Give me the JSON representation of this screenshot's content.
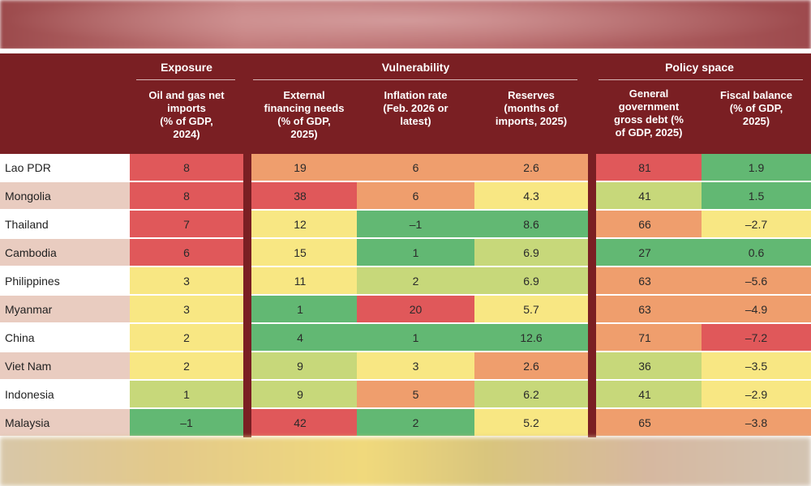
{
  "chart_data": {
    "type": "table",
    "groups": [
      {
        "label": "Exposure"
      },
      {
        "label": "Vulnerability"
      },
      {
        "label": "Policy space"
      }
    ],
    "columns": [
      {
        "lines": [
          "Oil and gas net",
          "imports",
          "(% of GDP,",
          "2024)"
        ]
      },
      {
        "lines": [
          "External",
          "financing needs",
          "(% of GDP,",
          "2025)"
        ]
      },
      {
        "lines": [
          "Inflation rate",
          "(Feb. 2026 or",
          "latest)"
        ]
      },
      {
        "lines": [
          "Reserves",
          "(months of",
          "imports, 2025)"
        ]
      },
      {
        "lines": [
          "General",
          "government",
          "gross debt (%",
          "of GDP, 2025)"
        ]
      },
      {
        "lines": [
          "Fiscal balance",
          "(% of GDP,",
          "2025)"
        ]
      }
    ],
    "rows": [
      {
        "country": "Lao PDR",
        "values": [
          "8",
          "19",
          "6",
          "2.6",
          "81",
          "1.9"
        ],
        "levels": [
          "red",
          "orange",
          "orange",
          "orange",
          "red",
          "green"
        ]
      },
      {
        "country": "Mongolia",
        "values": [
          "8",
          "38",
          "6",
          "4.3",
          "41",
          "1.5"
        ],
        "levels": [
          "red",
          "red",
          "orange",
          "yellow",
          "lgreen",
          "green"
        ]
      },
      {
        "country": "Thailand",
        "values": [
          "7",
          "12",
          "–1",
          "8.6",
          "66",
          "–2.7"
        ],
        "levels": [
          "red",
          "yellow",
          "green",
          "green",
          "orange",
          "yellow"
        ]
      },
      {
        "country": "Cambodia",
        "values": [
          "6",
          "15",
          "1",
          "6.9",
          "27",
          "0.6"
        ],
        "levels": [
          "red",
          "yellow",
          "green",
          "lgreen",
          "green",
          "green"
        ]
      },
      {
        "country": "Philippines",
        "values": [
          "3",
          "11",
          "2",
          "6.9",
          "63",
          "–5.6"
        ],
        "levels": [
          "yellow",
          "yellow",
          "lgreen",
          "lgreen",
          "orange",
          "orange"
        ]
      },
      {
        "country": "Myanmar",
        "values": [
          "3",
          "1",
          "20",
          "5.7",
          "63",
          "–4.9"
        ],
        "levels": [
          "yellow",
          "green",
          "red",
          "yellow",
          "orange",
          "orange"
        ]
      },
      {
        "country": "China",
        "values": [
          "2",
          "4",
          "1",
          "12.6",
          "71",
          "–7.2"
        ],
        "levels": [
          "yellow",
          "green",
          "green",
          "green",
          "orange",
          "red"
        ]
      },
      {
        "country": "Viet Nam",
        "values": [
          "2",
          "9",
          "3",
          "2.6",
          "36",
          "–3.5"
        ],
        "levels": [
          "yellow",
          "lgreen",
          "yellow",
          "orange",
          "lgreen",
          "yellow"
        ]
      },
      {
        "country": "Indonesia",
        "values": [
          "1",
          "9",
          "5",
          "6.2",
          "41",
          "–2.9"
        ],
        "levels": [
          "lgreen",
          "lgreen",
          "orange",
          "lgreen",
          "lgreen",
          "yellow"
        ]
      },
      {
        "country": "Malaysia",
        "values": [
          "–1",
          "42",
          "2",
          "5.2",
          "65",
          "–3.8"
        ],
        "levels": [
          "green",
          "red",
          "green",
          "yellow",
          "orange",
          "orange"
        ]
      }
    ],
    "row_label_colors": [
      "#ffffff",
      "#e9ccc0"
    ],
    "colors": {
      "red": "#e0585a",
      "orange": "#ef9e6d",
      "yellow": "#f8e783",
      "lgreen": "#c7d87a",
      "green": "#62b873",
      "header": "#7a1f23"
    }
  }
}
